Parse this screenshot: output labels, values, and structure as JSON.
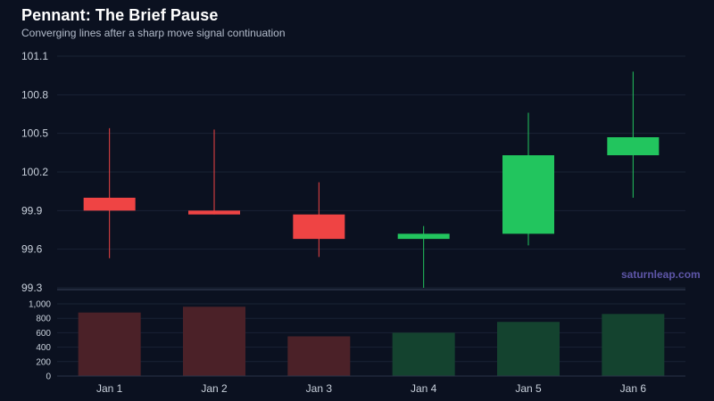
{
  "header": {
    "title": "Pennant: The Brief Pause",
    "subtitle": "Converging lines after a sharp move signal continuation"
  },
  "watermark": "saturnleap.com",
  "colors": {
    "background": "#0b1120",
    "up": "#22c55e",
    "down": "#ef4444",
    "volume_up": "#14432f",
    "volume_down": "#4b2128",
    "grid": "#1a2234",
    "axis_text": "#c9d1dc"
  },
  "chart_data": {
    "type": "candlestick",
    "categories": [
      "Jan 1",
      "Jan 2",
      "Jan 3",
      "Jan 4",
      "Jan 5",
      "Jan 6"
    ],
    "ohlc": [
      {
        "open": 100.0,
        "high": 100.54,
        "low": 99.53,
        "close": 99.9
      },
      {
        "open": 99.9,
        "high": 100.53,
        "low": 99.87,
        "close": 99.87
      },
      {
        "open": 99.87,
        "high": 100.12,
        "low": 99.54,
        "close": 99.68
      },
      {
        "open": 99.68,
        "high": 99.78,
        "low": 99.3,
        "close": 99.72
      },
      {
        "open": 99.72,
        "high": 100.66,
        "low": 99.63,
        "close": 100.33
      },
      {
        "open": 100.33,
        "high": 100.98,
        "low": 100.0,
        "close": 100.47
      }
    ],
    "volume": [
      880,
      960,
      550,
      600,
      750,
      860
    ],
    "price_axis": {
      "ticks": [
        "99.3",
        "99.6",
        "99.9",
        "100.2",
        "100.5",
        "100.8",
        "101.1"
      ],
      "range": [
        99.3,
        101.1
      ]
    },
    "volume_axis": {
      "ticks": [
        "0",
        "200",
        "400",
        "600",
        "800",
        "1,000"
      ],
      "range": [
        0,
        1000
      ]
    },
    "grid": true
  }
}
